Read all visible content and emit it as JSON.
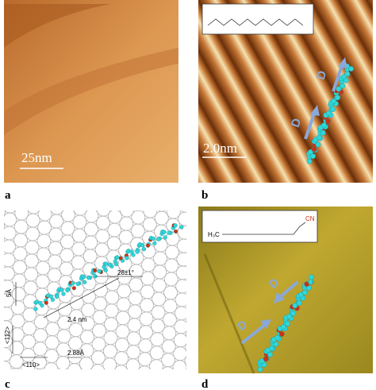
{
  "panels": [
    {
      "label": "a",
      "scale_bar": "25nm"
    },
    {
      "label": "b",
      "scale_bar": "2.0nm",
      "annotations": [
        "D",
        "D"
      ]
    },
    {
      "label": "c",
      "annotations": [
        "28±1°",
        "2.4 nm",
        "5Å",
        "<112>",
        "<110>",
        "2.88Å"
      ]
    },
    {
      "label": "d",
      "annotations": [
        "D",
        "D"
      ],
      "molecule_labels": [
        "CN",
        "H₃C"
      ]
    }
  ]
}
